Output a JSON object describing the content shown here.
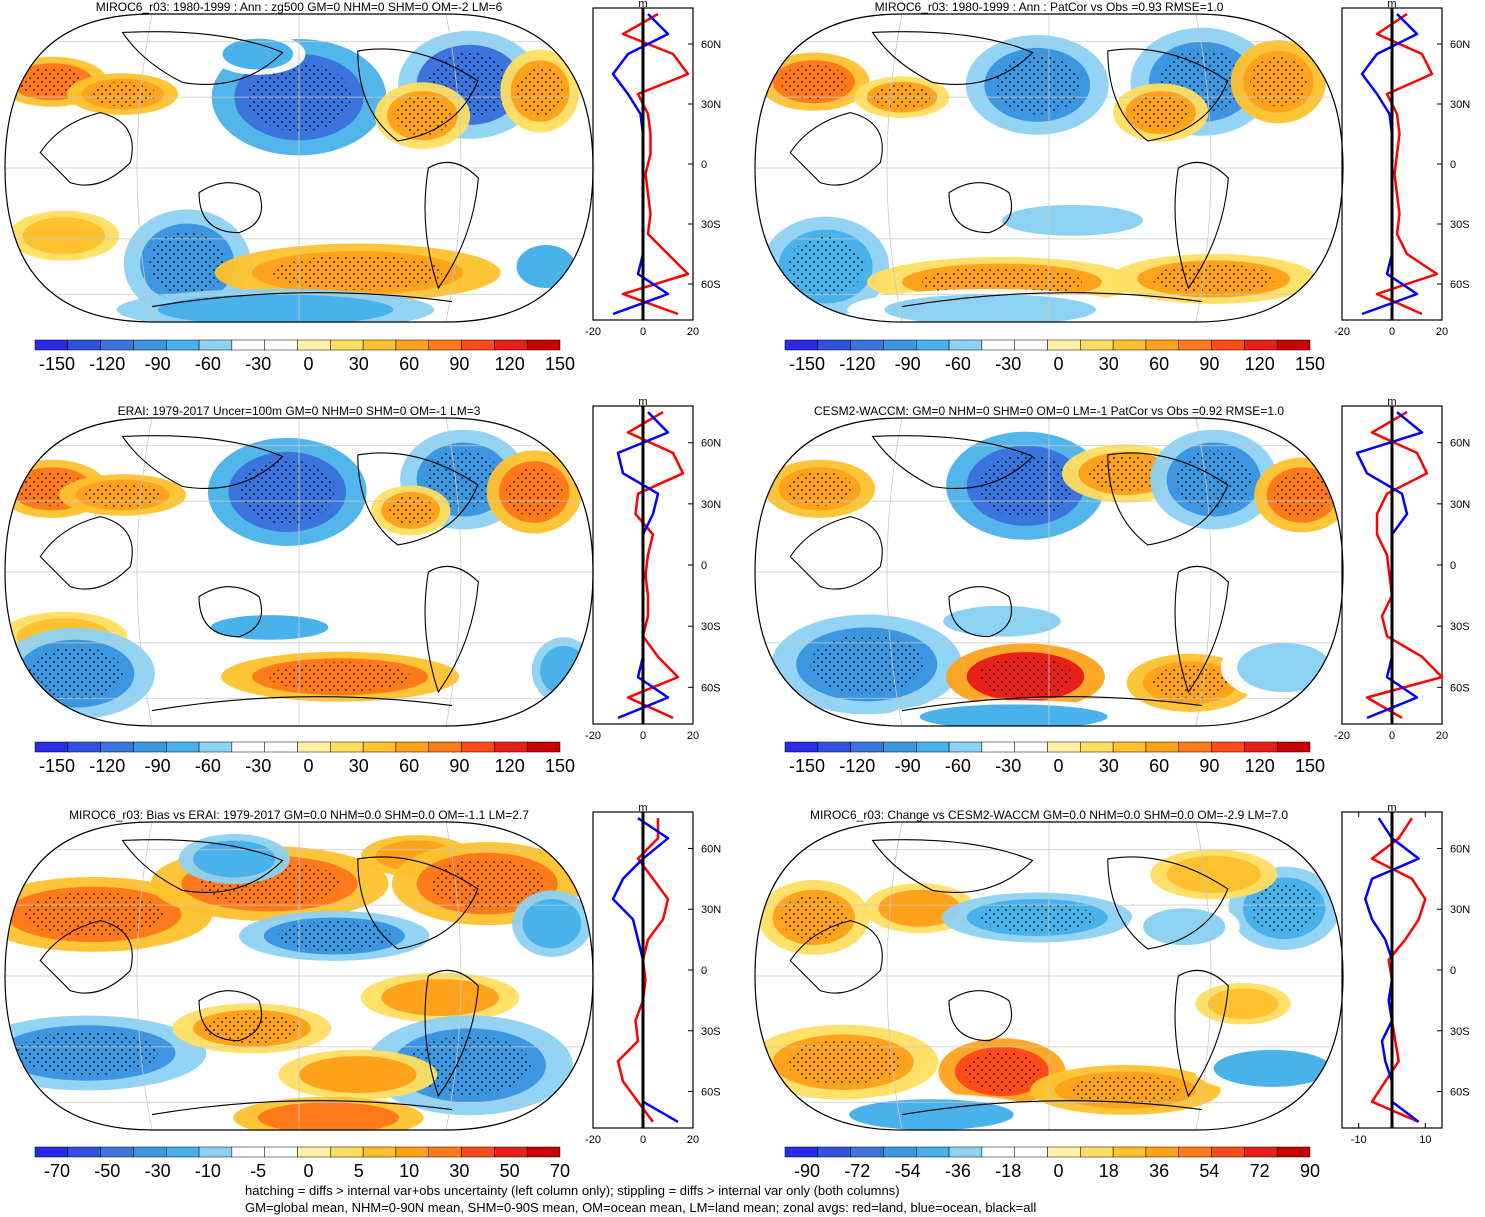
{
  "panels": [
    {
      "title": "MIROC6_r03: 1980-1999 : Ann : zg500 GM=0 NHM=0 SHM=0 OM=-2 LM=6",
      "colorbar": [
        "-150",
        "-120",
        "-90",
        "-60",
        "-30",
        "0",
        "30",
        "60",
        "90",
        "120",
        "150"
      ],
      "zonal": {
        "unit": "m",
        "xticks": [
          "-20",
          "0",
          "20"
        ],
        "xlim": [
          -20,
          20
        ]
      },
      "blobs": [
        [
          0.08,
          0.22,
          0.07,
          0.06,
          0.55,
          0.4
        ],
        [
          0.2,
          0.26,
          0.07,
          0.05,
          0.5,
          0.4
        ],
        [
          0.5,
          0.27,
          0.11,
          0.14,
          -0.75,
          0.4
        ],
        [
          0.43,
          0.13,
          0.06,
          0.05,
          -0.45,
          0.3
        ],
        [
          0.79,
          0.23,
          0.09,
          0.13,
          -0.7,
          0.4
        ],
        [
          0.71,
          0.33,
          0.06,
          0.08,
          0.45,
          0.4
        ],
        [
          0.91,
          0.25,
          0.05,
          0.1,
          0.45,
          0.4
        ],
        [
          0.1,
          0.72,
          0.07,
          0.06,
          0.35,
          0.3
        ],
        [
          0.31,
          0.81,
          0.08,
          0.13,
          -0.6,
          0.4
        ],
        [
          0.6,
          0.84,
          0.18,
          0.07,
          0.5,
          0.5
        ],
        [
          0.92,
          0.82,
          0.05,
          0.07,
          -0.45,
          0.3
        ],
        [
          0.46,
          0.96,
          0.2,
          0.05,
          -0.5,
          0.3
        ]
      ],
      "zonal_lines": {
        "lat": [
          -75,
          -65,
          -55,
          -45,
          -35,
          -25,
          -15,
          -5,
          5,
          15,
          25,
          35,
          45,
          55,
          65,
          75
        ],
        "land": [
          14,
          -8,
          18,
          10,
          2,
          3,
          2,
          1,
          3,
          3,
          2,
          -2,
          18,
          12,
          -8,
          6
        ],
        "ocean": [
          -12,
          10,
          -2,
          0,
          0,
          0,
          0,
          0,
          0,
          0,
          -1,
          -6,
          -12,
          -6,
          10,
          2
        ]
      }
    },
    {
      "title": "MIROC6_r03: 1980-1999 : Ann : PatCor vs Obs =0.93 RMSE=1.0",
      "colorbar": [
        "-150",
        "-120",
        "-90",
        "-60",
        "-30",
        "0",
        "30",
        "60",
        "90",
        "120",
        "150"
      ],
      "zonal": {
        "unit": "m",
        "xticks": [
          "-20",
          "0",
          "20"
        ],
        "xlim": [
          -20,
          20
        ]
      },
      "blobs": [
        [
          0.1,
          0.22,
          0.07,
          0.07,
          0.55,
          0.4
        ],
        [
          0.25,
          0.27,
          0.06,
          0.05,
          0.45,
          0.4
        ],
        [
          0.48,
          0.23,
          0.09,
          0.12,
          -0.6,
          0.4
        ],
        [
          0.76,
          0.22,
          0.09,
          0.13,
          -0.65,
          0.4
        ],
        [
          0.69,
          0.32,
          0.06,
          0.07,
          0.45,
          0.4
        ],
        [
          0.89,
          0.22,
          0.06,
          0.1,
          0.5,
          0.4
        ],
        [
          0.54,
          0.67,
          0.12,
          0.05,
          -0.4,
          0.3
        ],
        [
          0.12,
          0.82,
          0.08,
          0.12,
          -0.5,
          0.4
        ],
        [
          0.42,
          0.87,
          0.17,
          0.06,
          0.45,
          0.5
        ],
        [
          0.78,
          0.86,
          0.13,
          0.06,
          0.4,
          0.4
        ],
        [
          0.4,
          0.96,
          0.18,
          0.05,
          -0.4,
          0.3
        ]
      ],
      "zonal_lines": {
        "lat": [
          -75,
          -65,
          -55,
          -45,
          -35,
          -25,
          -15,
          -5,
          5,
          15,
          25,
          35,
          45,
          55,
          65,
          75
        ],
        "land": [
          12,
          -6,
          18,
          6,
          2,
          3,
          2,
          1,
          2,
          3,
          2,
          -2,
          16,
          12,
          -6,
          6
        ],
        "ocean": [
          -12,
          10,
          -2,
          0,
          0,
          0,
          0,
          0,
          0,
          0,
          -1,
          -6,
          -12,
          -6,
          10,
          2
        ]
      }
    },
    {
      "title": "ERAI: 1979-2017 Uncer=100m GM=0 NHM=0 SHM=0 OM=-1 LM=3",
      "colorbar": [
        "-150",
        "-120",
        "-90",
        "-60",
        "-30",
        "0",
        "30",
        "60",
        "90",
        "120",
        "150"
      ],
      "zonal": {
        "unit": "m",
        "xticks": [
          "-20",
          "0",
          "20"
        ],
        "xlim": [
          -20,
          20
        ]
      },
      "blobs": [
        [
          0.08,
          0.23,
          0.07,
          0.07,
          0.55,
          0.4
        ],
        [
          0.2,
          0.25,
          0.08,
          0.05,
          0.5,
          0.4
        ],
        [
          0.48,
          0.24,
          0.1,
          0.13,
          -0.75,
          0.4
        ],
        [
          0.78,
          0.2,
          0.08,
          0.12,
          -0.65,
          0.4
        ],
        [
          0.9,
          0.24,
          0.06,
          0.1,
          0.6,
          0.4
        ],
        [
          0.69,
          0.3,
          0.05,
          0.06,
          0.4,
          0.4
        ],
        [
          0.1,
          0.71,
          0.08,
          0.06,
          0.35,
          0.3
        ],
        [
          0.45,
          0.68,
          0.1,
          0.04,
          -0.45,
          0.3
        ],
        [
          0.12,
          0.83,
          0.1,
          0.11,
          -0.6,
          0.4
        ],
        [
          0.57,
          0.84,
          0.15,
          0.06,
          0.55,
          0.5
        ],
        [
          0.95,
          0.82,
          0.04,
          0.08,
          -0.5,
          0.3
        ]
      ],
      "zonal_lines": {
        "lat": [
          -75,
          -65,
          -55,
          -45,
          -35,
          -25,
          -15,
          -5,
          5,
          15,
          25,
          35,
          45,
          55,
          65,
          75
        ],
        "land": [
          12,
          -6,
          14,
          6,
          0,
          2,
          2,
          1,
          2,
          4,
          -3,
          -2,
          16,
          12,
          -6,
          8
        ],
        "ocean": [
          -10,
          10,
          -2,
          0,
          0,
          0,
          0,
          0,
          0,
          0,
          4,
          6,
          -8,
          -10,
          10,
          2
        ]
      }
    },
    {
      "title": "CESM2-WACCM: GM=0 NHM=0 SHM=0 OM=0 LM=-1 PatCor vs Obs =0.92 RMSE=1.0",
      "colorbar": [
        "-150",
        "-120",
        "-90",
        "-60",
        "-30",
        "0",
        "30",
        "60",
        "90",
        "120",
        "150"
      ],
      "zonal": {
        "unit": "m",
        "xticks": [
          "-20",
          "0",
          "20"
        ],
        "xlim": [
          -20,
          20
        ]
      },
      "blobs": [
        [
          0.11,
          0.23,
          0.07,
          0.07,
          0.5,
          0.4
        ],
        [
          0.46,
          0.22,
          0.1,
          0.13,
          -0.75,
          0.4
        ],
        [
          0.63,
          0.18,
          0.08,
          0.07,
          0.45,
          0.4
        ],
        [
          0.78,
          0.2,
          0.08,
          0.12,
          -0.65,
          0.4
        ],
        [
          0.93,
          0.25,
          0.06,
          0.09,
          0.65,
          0.4
        ],
        [
          0.42,
          0.66,
          0.1,
          0.05,
          -0.4,
          0.3
        ],
        [
          0.19,
          0.8,
          0.12,
          0.12,
          -0.6,
          0.4
        ],
        [
          0.46,
          0.84,
          0.1,
          0.08,
          0.85,
          0.5
        ],
        [
          0.74,
          0.86,
          0.08,
          0.07,
          0.5,
          0.4
        ],
        [
          0.9,
          0.81,
          0.08,
          0.08,
          -0.4,
          0.3
        ],
        [
          0.44,
          0.97,
          0.16,
          0.04,
          -0.45,
          0.3
        ]
      ],
      "zonal_lines": {
        "lat": [
          -75,
          -65,
          -55,
          -45,
          -35,
          -25,
          -15,
          -5,
          5,
          15,
          25,
          35,
          45,
          55,
          65,
          75
        ],
        "land": [
          4,
          -10,
          20,
          12,
          -2,
          -4,
          0,
          -1,
          -2,
          -6,
          -6,
          -2,
          14,
          10,
          -8,
          6
        ],
        "ocean": [
          -10,
          10,
          -2,
          0,
          0,
          0,
          0,
          0,
          0,
          0,
          6,
          4,
          -10,
          -14,
          12,
          2
        ]
      }
    },
    {
      "title": "MIROC6_r03: Bias vs ERAI: 1979-2017 GM=0.0 NHM=0.0 SHM=0.0 OM=-1.1 LM=2.7",
      "colorbar": [
        "-70",
        "-50",
        "-30",
        "-10",
        "-5",
        "0",
        "5",
        "10",
        "30",
        "50",
        "70"
      ],
      "zonal": {
        "unit": "m",
        "xticks": [
          "-20",
          "0",
          "20"
        ],
        "xlim": [
          -20,
          20
        ]
      },
      "blobs": [
        [
          0.15,
          0.3,
          0.15,
          0.09,
          0.6,
          0.5
        ],
        [
          0.45,
          0.2,
          0.15,
          0.09,
          0.55,
          0.5
        ],
        [
          0.56,
          0.37,
          0.12,
          0.06,
          -0.6,
          0.4
        ],
        [
          0.39,
          0.12,
          0.07,
          0.06,
          -0.5,
          0.3
        ],
        [
          0.7,
          0.11,
          0.07,
          0.05,
          0.5,
          0.3
        ],
        [
          0.82,
          0.2,
          0.12,
          0.1,
          0.6,
          0.4
        ],
        [
          0.93,
          0.33,
          0.05,
          0.08,
          -0.5,
          0.3
        ],
        [
          0.14,
          0.75,
          0.15,
          0.09,
          -0.6,
          0.4
        ],
        [
          0.42,
          0.67,
          0.1,
          0.06,
          0.45,
          0.4
        ],
        [
          0.74,
          0.57,
          0.1,
          0.06,
          0.4,
          0.3
        ],
        [
          0.79,
          0.79,
          0.13,
          0.12,
          -0.6,
          0.4
        ],
        [
          0.6,
          0.82,
          0.1,
          0.06,
          0.45,
          0.3
        ],
        [
          0.55,
          0.96,
          0.12,
          0.05,
          0.6,
          0.3
        ]
      ],
      "zonal_lines": {
        "lat": [
          -75,
          -65,
          -55,
          -45,
          -35,
          -25,
          -15,
          -5,
          5,
          15,
          25,
          35,
          45,
          55,
          65,
          75
        ],
        "land": [
          4,
          -2,
          -8,
          -10,
          -2,
          -3,
          0,
          1,
          0,
          2,
          8,
          10,
          4,
          -2,
          6,
          6
        ],
        "ocean": [
          14,
          0,
          0,
          0,
          0,
          0,
          0,
          0,
          0,
          -2,
          -4,
          -12,
          -8,
          0,
          10,
          -2
        ]
      }
    },
    {
      "title": "MIROC6_r03: Change vs CESM2-WACCM GM=0.0 NHM=0.0 SHM=0.0 OM=-2.9 LM=7.0",
      "colorbar": [
        "-90",
        "-72",
        "-54",
        "-36",
        "-18",
        "0",
        "18",
        "36",
        "54",
        "72",
        "90"
      ],
      "zonal": {
        "unit": "m",
        "xticks": [
          "-10",
          "10"
        ],
        "xlim": [
          -15,
          15
        ]
      },
      "blobs": [
        [
          0.1,
          0.31,
          0.07,
          0.09,
          0.45,
          0.4
        ],
        [
          0.28,
          0.28,
          0.07,
          0.06,
          0.4,
          0.3
        ],
        [
          0.48,
          0.31,
          0.12,
          0.06,
          -0.5,
          0.4
        ],
        [
          0.9,
          0.28,
          0.07,
          0.1,
          -0.5,
          0.4
        ],
        [
          0.73,
          0.34,
          0.07,
          0.06,
          -0.35,
          0.3
        ],
        [
          0.78,
          0.17,
          0.08,
          0.06,
          0.35,
          0.3
        ],
        [
          0.83,
          0.59,
          0.06,
          0.05,
          0.35,
          0.3
        ],
        [
          0.15,
          0.78,
          0.12,
          0.09,
          0.45,
          0.4
        ],
        [
          0.42,
          0.81,
          0.08,
          0.08,
          0.75,
          0.5
        ],
        [
          0.63,
          0.87,
          0.12,
          0.06,
          0.5,
          0.4
        ],
        [
          0.88,
          0.8,
          0.1,
          0.06,
          -0.45,
          0.3
        ],
        [
          0.3,
          0.95,
          0.14,
          0.05,
          -0.45,
          0.3
        ]
      ],
      "zonal_lines": {
        "lat": [
          -75,
          -65,
          -55,
          -45,
          -35,
          -25,
          -15,
          -5,
          5,
          15,
          25,
          35,
          45,
          55,
          65,
          75
        ],
        "land": [
          8,
          -6,
          -2,
          2,
          1,
          0,
          -1,
          0,
          -1,
          4,
          8,
          10,
          6,
          -6,
          2,
          6
        ],
        "ocean": [
          8,
          0,
          0,
          -2,
          -3,
          0,
          -1,
          0,
          0,
          -2,
          -6,
          -8,
          -6,
          8,
          0,
          -4
        ]
      }
    }
  ],
  "zonal_lat_labels": [
    "60N",
    "30N",
    "0",
    "30S",
    "60S"
  ],
  "footer": {
    "line1": "hatching = diffs > internal var+obs uncertainty (left column only); stippling = diffs > internal var only (both columns)",
    "line2": "GM=global mean, NHM=0-90N mean, SHM=0-90S mean, OM=ocean mean, LM=land mean; zonal avgs: red=land, blue=ocean, black=all"
  },
  "colors": {
    "palette": [
      "#2a2ae6",
      "#3050e0",
      "#3a74dc",
      "#3d96e0",
      "#49b2ea",
      "#8dd2f3",
      "#ffffff",
      "#ffffff",
      "#fff2a6",
      "#ffde60",
      "#ffc22e",
      "#ffa21c",
      "#ff7a1a",
      "#ff4a1a",
      "#e8201a",
      "#c80000"
    ],
    "land_line": "#ff0000",
    "ocean_line": "#0000ff",
    "all_line": "#000000",
    "graticule": "#c8c8c8"
  }
}
